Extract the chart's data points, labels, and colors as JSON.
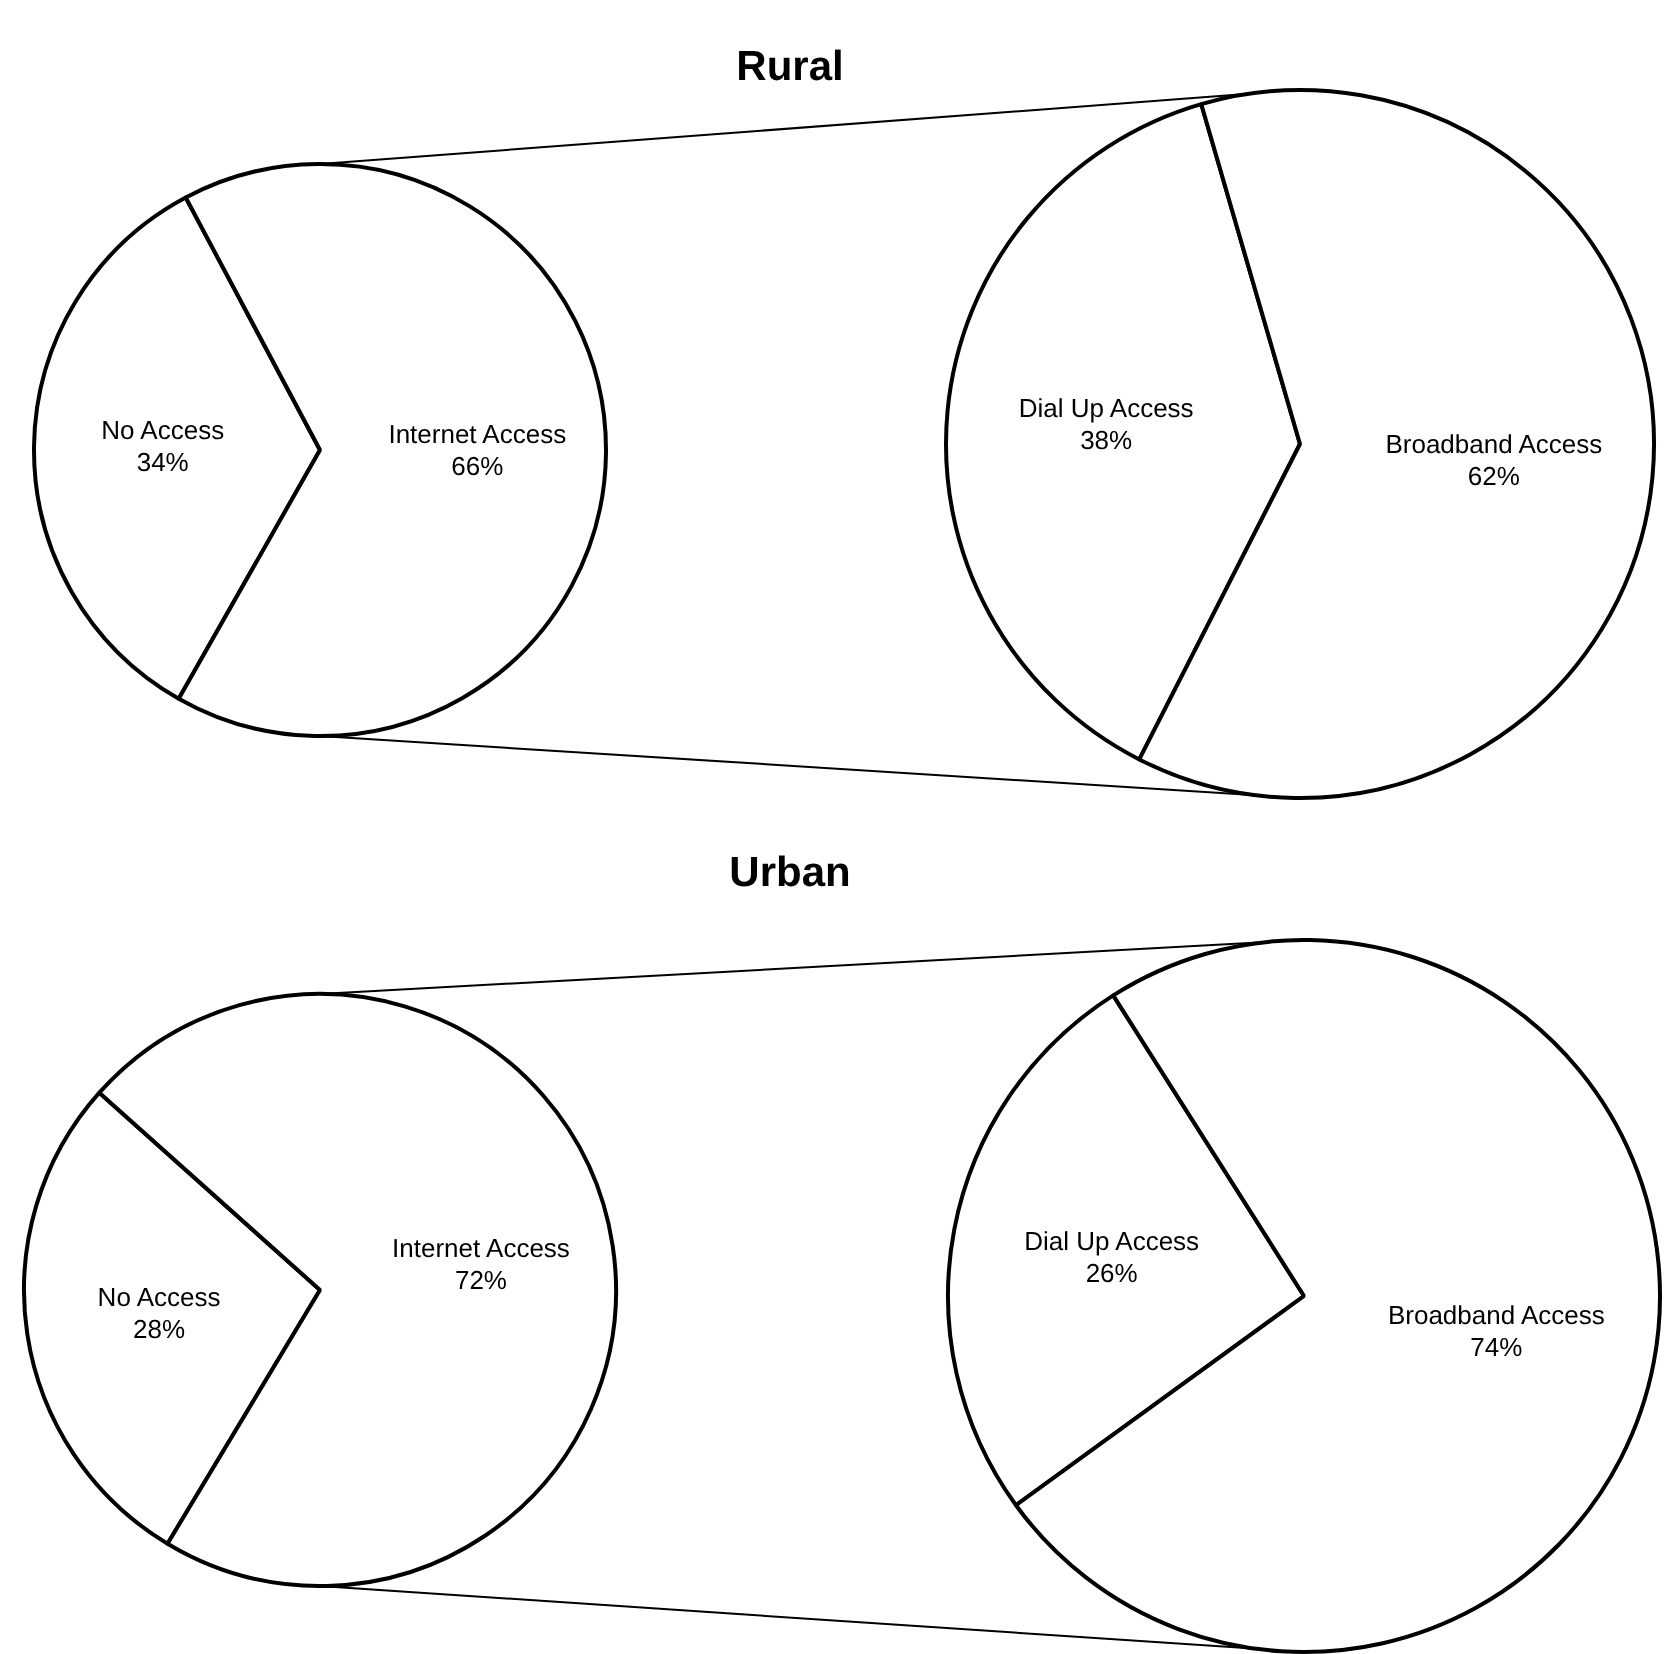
{
  "chart_data": [
    {
      "type": "pie",
      "title": "Rural",
      "categories": [
        "No Access",
        "Internet Access"
      ],
      "values": [
        34,
        66
      ],
      "colors": [
        "#ffffff",
        "#ffffff"
      ],
      "value_labels": [
        "34%",
        "66%"
      ]
    },
    {
      "type": "pie",
      "categories": [
        "Dial Up Access",
        "Broadband Access"
      ],
      "values": [
        38,
        62
      ],
      "colors": [
        "#ffffff",
        "#ffffff"
      ],
      "value_labels": [
        "38%",
        "62%"
      ]
    },
    {
      "type": "pie",
      "title": "Urban",
      "categories": [
        "No Access",
        "Internet Access"
      ],
      "values": [
        28,
        72
      ],
      "colors": [
        "#ffffff",
        "#ffffff"
      ],
      "value_labels": [
        "28%",
        "72%"
      ]
    },
    {
      "type": "pie",
      "categories": [
        "Dial Up Access",
        "Broadband Access"
      ],
      "values": [
        26,
        74
      ],
      "colors": [
        "#ffffff",
        "#ffffff"
      ],
      "value_labels": [
        "26%",
        "74%"
      ]
    }
  ]
}
